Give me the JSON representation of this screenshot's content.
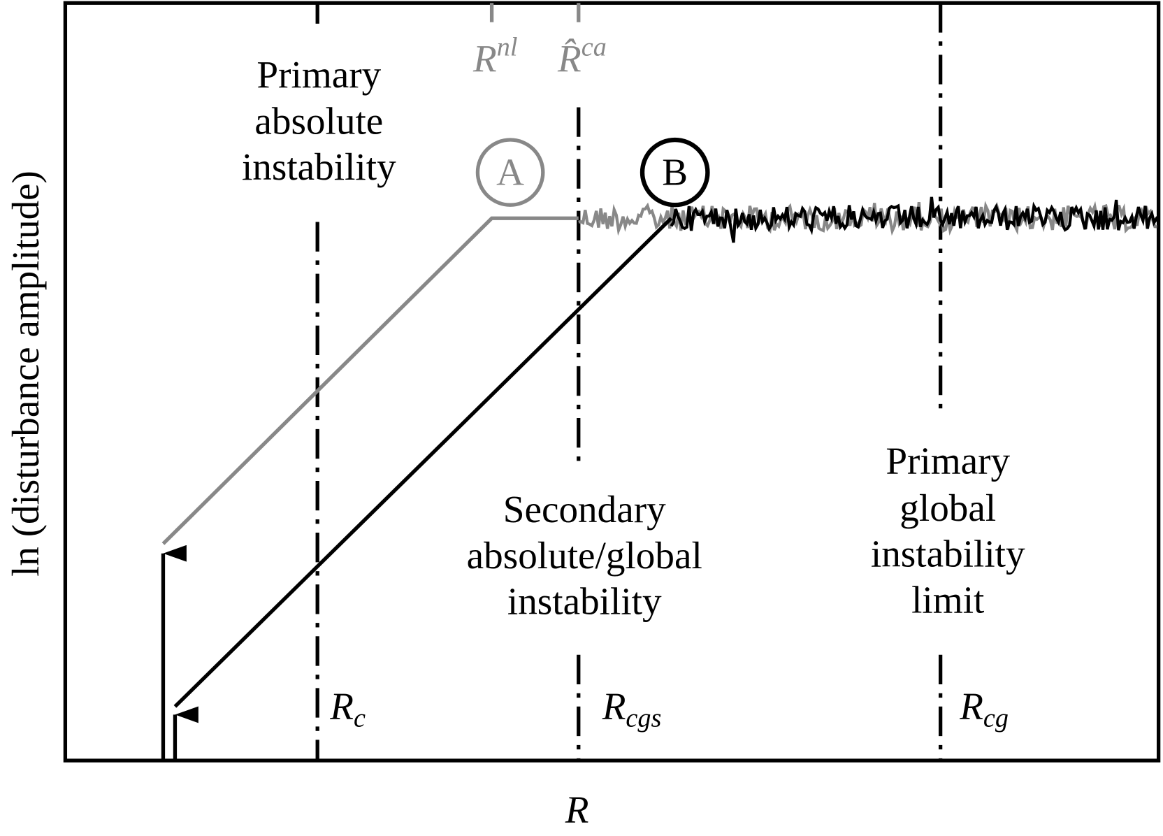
{
  "y_axis_label": "ln (disturbance amplitude)",
  "x_axis_label": "R",
  "regions": [
    {
      "lines": [
        "Primary",
        "absolute",
        "instability"
      ]
    },
    {
      "lines": [
        "Secondary",
        "absolute/global",
        "instability"
      ]
    },
    {
      "lines": [
        "Primary",
        "global",
        "instability",
        "limit"
      ]
    }
  ],
  "markers": {
    "r_nl": {
      "main": "R",
      "sup": "nl"
    },
    "r_hat_ca": {
      "main": "R̂",
      "sup": "ca"
    },
    "r_c": {
      "main": "R",
      "sub": "c"
    },
    "r_cgs": {
      "main": "R",
      "sub": "cgs"
    },
    "r_cg": {
      "main": "R",
      "sub": "cg"
    }
  },
  "points": {
    "a": "A",
    "b": "B"
  }
}
